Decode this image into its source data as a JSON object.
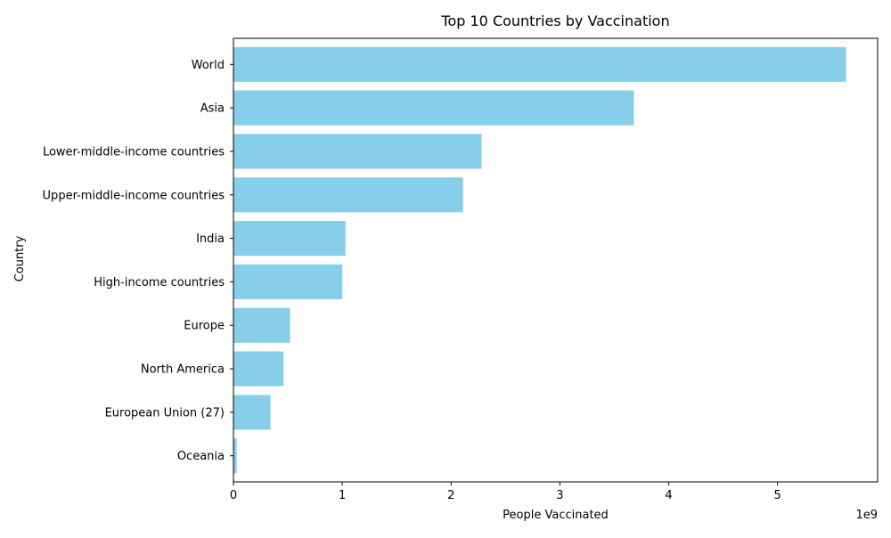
{
  "chart_data": {
    "type": "bar",
    "orientation": "horizontal",
    "title": "Top 10 Countries by Vaccination",
    "xlabel": "People Vaccinated",
    "ylabel": "Country",
    "x_offset_label": "1e9",
    "x_scale_factor": 1000000000,
    "categories": [
      "World",
      "Asia",
      "Lower-middle-income countries",
      "Upper-middle-income countries",
      "India",
      "High-income countries",
      "Europe",
      "North America",
      "European Union (27)",
      "Oceania"
    ],
    "values": [
      5630000000,
      3680000000,
      2280000000,
      2110000000,
      1030000000,
      1000000000,
      520000000,
      460000000,
      340000000,
      30000000
    ],
    "xlim": [
      0,
      5920000000
    ],
    "xticks": [
      0,
      1,
      2,
      3,
      4,
      5
    ],
    "grid": false,
    "bar_color": "#87ceeb"
  }
}
